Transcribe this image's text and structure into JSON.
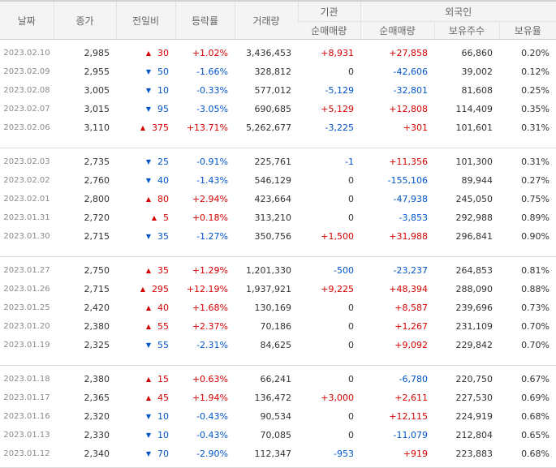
{
  "header": {
    "date": "날짜",
    "close": "종가",
    "change": "전일비",
    "rate": "등락률",
    "volume": "거래량",
    "inst_group": "기관",
    "foreign_group": "외국인",
    "inst_net": "순매매량",
    "foreign_net": "순매매량",
    "foreign_hold": "보유주수",
    "foreign_ratio": "보유율"
  },
  "colors": {
    "up": "#d60000",
    "down": "#0055cc",
    "date": "#8a8a8a"
  },
  "groups": [
    [
      {
        "date": "2023.02.10",
        "close": "2,985",
        "dir": "up",
        "change": "30",
        "rate": "+1.02%",
        "volume": "3,436,453",
        "inst": "+8,931",
        "foreign": "+27,858",
        "hold": "66,860",
        "ratio": "0.20%"
      },
      {
        "date": "2023.02.09",
        "close": "2,955",
        "dir": "down",
        "change": "50",
        "rate": "-1.66%",
        "volume": "328,812",
        "inst": "0",
        "foreign": "-42,606",
        "hold": "39,002",
        "ratio": "0.12%"
      },
      {
        "date": "2023.02.08",
        "close": "3,005",
        "dir": "down",
        "change": "10",
        "rate": "-0.33%",
        "volume": "577,012",
        "inst": "-5,129",
        "foreign": "-32,801",
        "hold": "81,608",
        "ratio": "0.25%"
      },
      {
        "date": "2023.02.07",
        "close": "3,015",
        "dir": "down",
        "change": "95",
        "rate": "-3.05%",
        "volume": "690,685",
        "inst": "+5,129",
        "foreign": "+12,808",
        "hold": "114,409",
        "ratio": "0.35%"
      },
      {
        "date": "2023.02.06",
        "close": "3,110",
        "dir": "up",
        "change": "375",
        "rate": "+13.71%",
        "volume": "5,262,677",
        "inst": "-3,225",
        "foreign": "+301",
        "hold": "101,601",
        "ratio": "0.31%"
      }
    ],
    [
      {
        "date": "2023.02.03",
        "close": "2,735",
        "dir": "down",
        "change": "25",
        "rate": "-0.91%",
        "volume": "225,761",
        "inst": "-1",
        "foreign": "+11,356",
        "hold": "101,300",
        "ratio": "0.31%"
      },
      {
        "date": "2023.02.02",
        "close": "2,760",
        "dir": "down",
        "change": "40",
        "rate": "-1.43%",
        "volume": "546,129",
        "inst": "0",
        "foreign": "-155,106",
        "hold": "89,944",
        "ratio": "0.27%"
      },
      {
        "date": "2023.02.01",
        "close": "2,800",
        "dir": "up",
        "change": "80",
        "rate": "+2.94%",
        "volume": "423,664",
        "inst": "0",
        "foreign": "-47,938",
        "hold": "245,050",
        "ratio": "0.75%"
      },
      {
        "date": "2023.01.31",
        "close": "2,720",
        "dir": "up",
        "change": "5",
        "rate": "+0.18%",
        "volume": "313,210",
        "inst": "0",
        "foreign": "-3,853",
        "hold": "292,988",
        "ratio": "0.89%"
      },
      {
        "date": "2023.01.30",
        "close": "2,715",
        "dir": "down",
        "change": "35",
        "rate": "-1.27%",
        "volume": "350,756",
        "inst": "+1,500",
        "foreign": "+31,988",
        "hold": "296,841",
        "ratio": "0.90%"
      }
    ],
    [
      {
        "date": "2023.01.27",
        "close": "2,750",
        "dir": "up",
        "change": "35",
        "rate": "+1.29%",
        "volume": "1,201,330",
        "inst": "-500",
        "foreign": "-23,237",
        "hold": "264,853",
        "ratio": "0.81%"
      },
      {
        "date": "2023.01.26",
        "close": "2,715",
        "dir": "up",
        "change": "295",
        "rate": "+12.19%",
        "volume": "1,937,921",
        "inst": "+9,225",
        "foreign": "+48,394",
        "hold": "288,090",
        "ratio": "0.88%"
      },
      {
        "date": "2023.01.25",
        "close": "2,420",
        "dir": "up",
        "change": "40",
        "rate": "+1.68%",
        "volume": "130,169",
        "inst": "0",
        "foreign": "+8,587",
        "hold": "239,696",
        "ratio": "0.73%"
      },
      {
        "date": "2023.01.20",
        "close": "2,380",
        "dir": "up",
        "change": "55",
        "rate": "+2.37%",
        "volume": "70,186",
        "inst": "0",
        "foreign": "+1,267",
        "hold": "231,109",
        "ratio": "0.70%"
      },
      {
        "date": "2023.01.19",
        "close": "2,325",
        "dir": "down",
        "change": "55",
        "rate": "-2.31%",
        "volume": "84,625",
        "inst": "0",
        "foreign": "+9,092",
        "hold": "229,842",
        "ratio": "0.70%"
      }
    ],
    [
      {
        "date": "2023.01.18",
        "close": "2,380",
        "dir": "up",
        "change": "15",
        "rate": "+0.63%",
        "volume": "66,241",
        "inst": "0",
        "foreign": "-6,780",
        "hold": "220,750",
        "ratio": "0.67%"
      },
      {
        "date": "2023.01.17",
        "close": "2,365",
        "dir": "up",
        "change": "45",
        "rate": "+1.94%",
        "volume": "136,472",
        "inst": "+3,000",
        "foreign": "+2,611",
        "hold": "227,530",
        "ratio": "0.69%"
      },
      {
        "date": "2023.01.16",
        "close": "2,320",
        "dir": "down",
        "change": "10",
        "rate": "-0.43%",
        "volume": "90,534",
        "inst": "0",
        "foreign": "+12,115",
        "hold": "224,919",
        "ratio": "0.68%"
      },
      {
        "date": "2023.01.13",
        "close": "2,330",
        "dir": "down",
        "change": "10",
        "rate": "-0.43%",
        "volume": "70,085",
        "inst": "0",
        "foreign": "-11,079",
        "hold": "212,804",
        "ratio": "0.65%"
      },
      {
        "date": "2023.01.12",
        "close": "2,340",
        "dir": "down",
        "change": "70",
        "rate": "-2.90%",
        "volume": "112,347",
        "inst": "-953",
        "foreign": "+919",
        "hold": "223,883",
        "ratio": "0.68%"
      }
    ]
  ]
}
